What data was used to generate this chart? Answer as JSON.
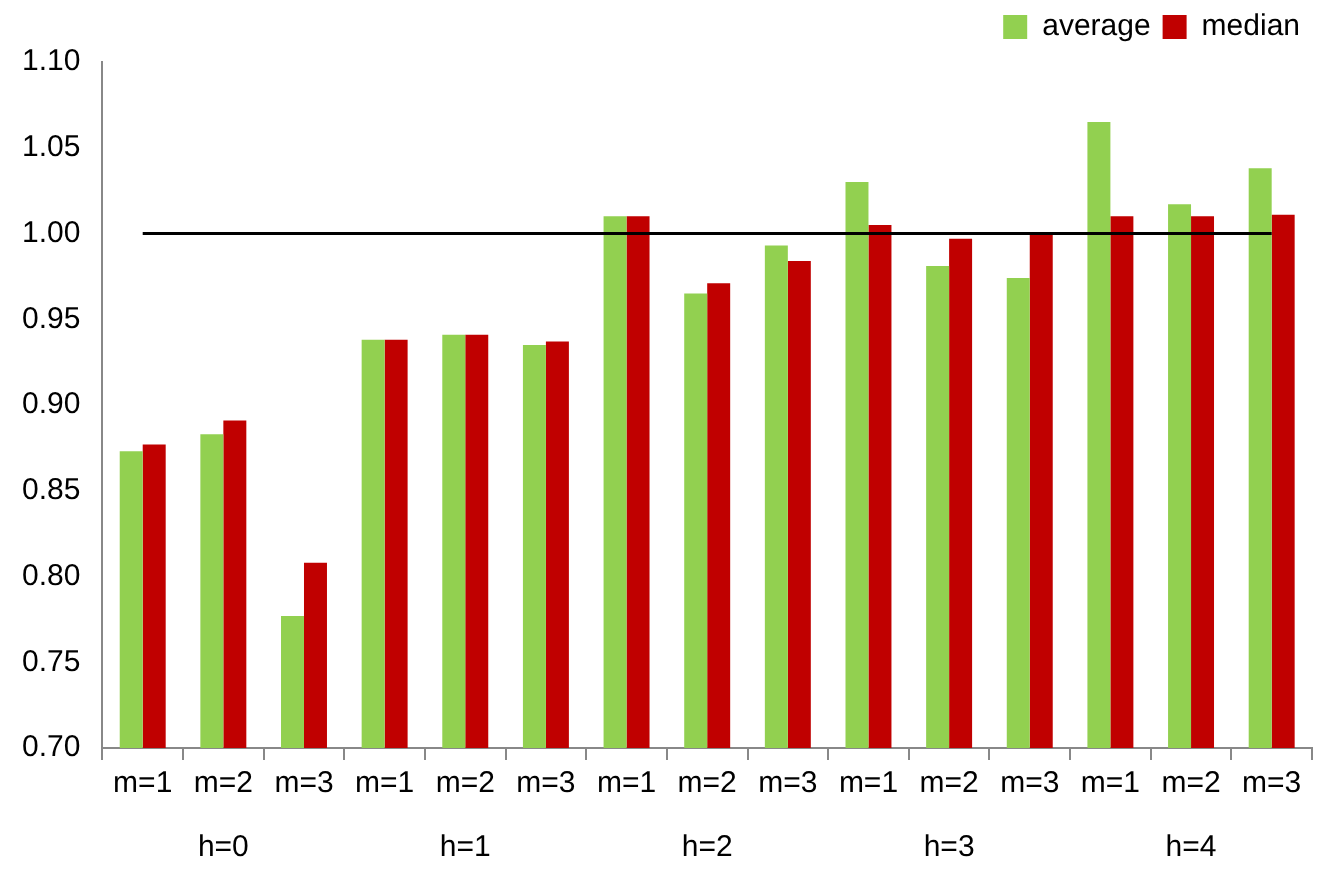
{
  "chart_data": {
    "type": "bar",
    "categories": [
      "m=1",
      "m=2",
      "m=3",
      "m=1",
      "m=2",
      "m=3",
      "m=1",
      "m=2",
      "m=3",
      "m=1",
      "m=2",
      "m=3",
      "m=1",
      "m=2",
      "m=3"
    ],
    "series": [
      {
        "name": "average",
        "color": "#92d050",
        "values": [
          0.873,
          0.883,
          0.777,
          0.938,
          0.941,
          0.935,
          1.01,
          0.965,
          0.993,
          1.03,
          0.981,
          0.974,
          1.065,
          1.017,
          1.038
        ]
      },
      {
        "name": "median",
        "color": "#c00000",
        "values": [
          0.877,
          0.891,
          0.808,
          0.938,
          0.941,
          0.937,
          1.01,
          0.971,
          0.984,
          1.005,
          0.997,
          1.0,
          1.01,
          1.01,
          1.011
        ]
      }
    ],
    "ylim": [
      0.7,
      1.1
    ],
    "yticks": [
      {
        "value": 0.7,
        "label": "0.70"
      },
      {
        "value": 0.75,
        "label": "0.75"
      },
      {
        "value": 0.8,
        "label": "0.80"
      },
      {
        "value": 0.85,
        "label": "0.85"
      },
      {
        "value": 0.9,
        "label": "0.90"
      },
      {
        "value": 0.95,
        "label": "0.95"
      },
      {
        "value": 1.0,
        "label": "1.00"
      },
      {
        "value": 1.05,
        "label": "1.05"
      },
      {
        "value": 1.1,
        "label": "1.10"
      }
    ],
    "ref_lines": [
      {
        "axis": "y",
        "value": 1.0,
        "color": "#000000"
      }
    ],
    "annotations": [
      "h=0",
      "h=1",
      "h=2",
      "h=3",
      "h=4"
    ],
    "grid": false,
    "legend": "top right"
  }
}
